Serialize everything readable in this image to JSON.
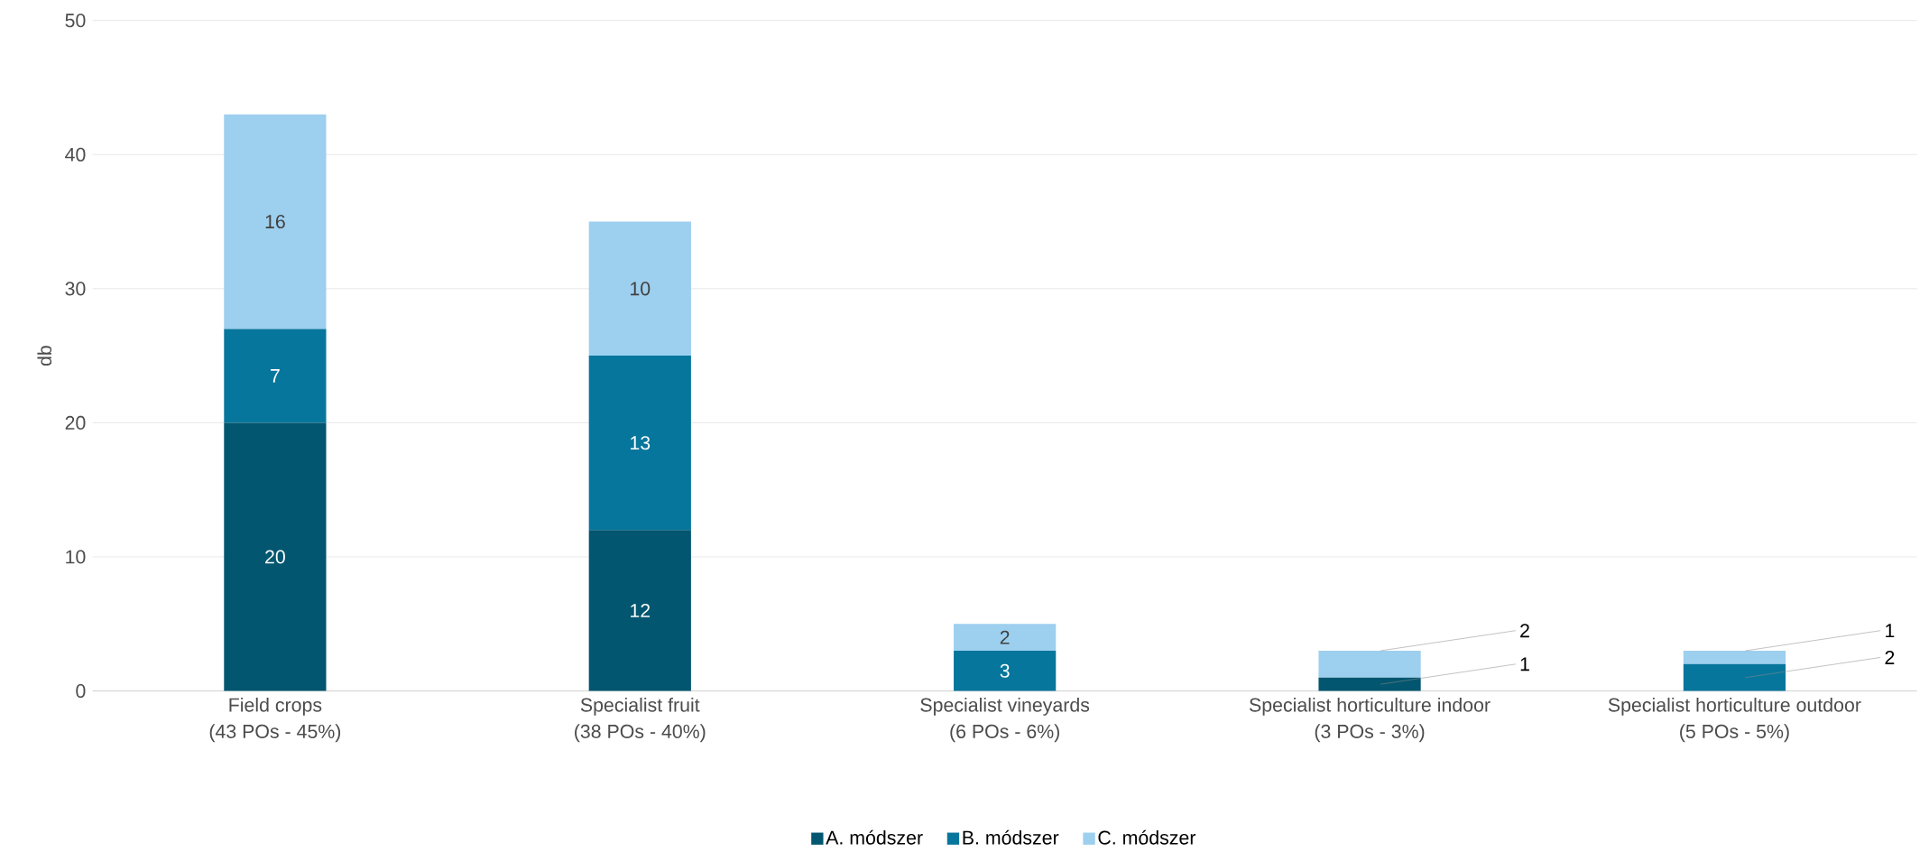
{
  "chart_data": {
    "type": "bar",
    "stacked": true,
    "ylabel": "db",
    "categories": [
      "Field crops\n(43 POs - 45%)",
      "Specialist fruit\n(38 POs - 40%)",
      "Specialist vineyards\n(6 POs - 6%)",
      "Specialist horticulture indoor\n(3 POs - 3%)",
      "Specialist horticulture outdoor\n(5 POs - 5%)"
    ],
    "series": [
      {
        "name": "A. módszer",
        "color": "#03566f",
        "values": [
          20,
          12,
          0,
          1,
          0
        ],
        "value_labels": [
          "20",
          "12",
          null,
          "1",
          null
        ]
      },
      {
        "name": "B. módszer",
        "color": "#07769c",
        "values": [
          7,
          13,
          3,
          0,
          2
        ],
        "value_labels": [
          "7",
          "13",
          "3",
          null,
          "2"
        ]
      },
      {
        "name": "C. módszer",
        "color": "#9dcfef",
        "values": [
          16,
          10,
          2,
          2,
          1
        ],
        "value_labels": [
          "16",
          "10",
          "2",
          "2",
          "1"
        ]
      }
    ],
    "ylim": [
      0,
      50
    ],
    "yticks": [
      0,
      10,
      20,
      30,
      40,
      50
    ],
    "grid": "y",
    "legend": "bottom"
  }
}
